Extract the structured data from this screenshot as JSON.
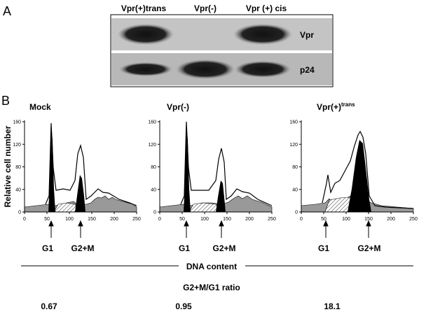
{
  "panel_a": {
    "label": "A",
    "lanes": [
      "Vpr(+)trans",
      "Vpr(-)",
      "Vpr (+) cis"
    ],
    "bands": [
      "Vpr",
      "p24"
    ]
  },
  "panel_b": {
    "label": "B",
    "y_label": "Relative cell number",
    "x_label": "DNA content",
    "ratio_title": "G2+M/G1 ratio",
    "yticks": [
      0,
      40,
      80,
      120,
      160
    ],
    "xticks": [
      0,
      50,
      100,
      150,
      200,
      250
    ],
    "plots": [
      {
        "title": "Mock",
        "markers": [
          "G1",
          "G2+M"
        ],
        "ratio": 0.67
      },
      {
        "title": "Vpr(-)",
        "markers": [
          "G1",
          "G2+M"
        ],
        "ratio": 0.95
      },
      {
        "title": "Vpr(+)",
        "title_sup": "trans",
        "markers": [
          "G1",
          "G2+M"
        ],
        "ratio": 18.1
      }
    ]
  }
}
